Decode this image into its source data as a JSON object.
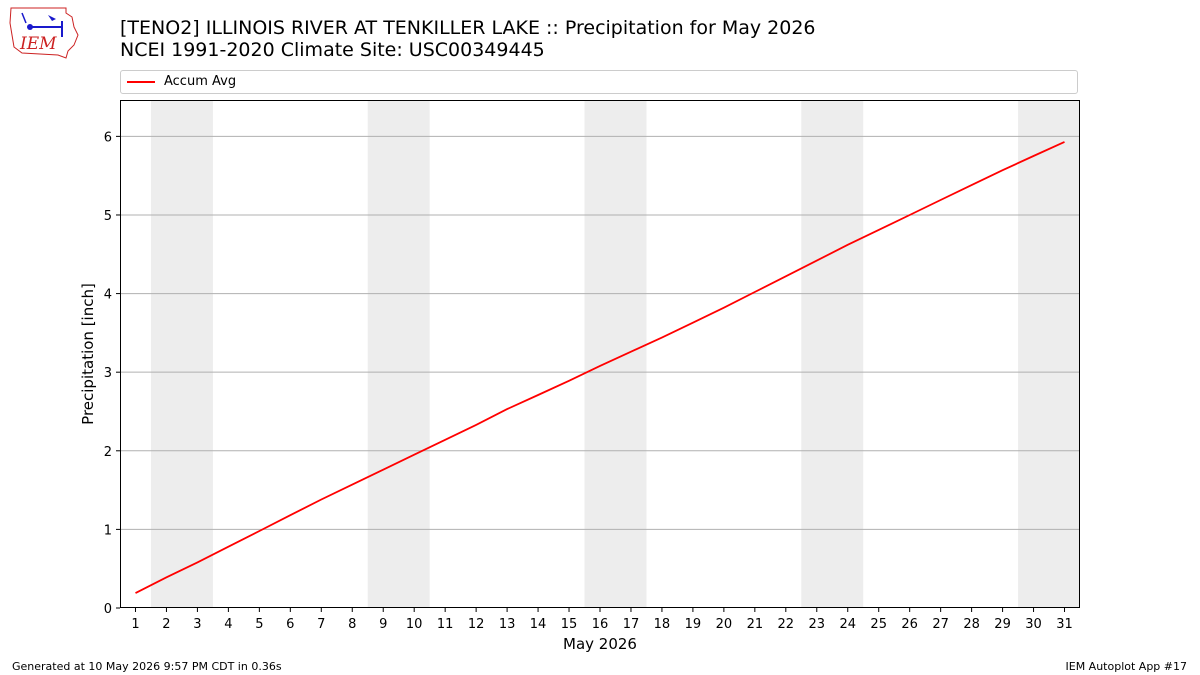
{
  "header": {
    "title_line1": "[TENO2] ILLINOIS RIVER  AT TENKILLER LAKE :: Precipitation for May 2026",
    "title_line2": "NCEI 1991-2020 Climate Site: USC00349445"
  },
  "logo": {
    "text": "IEM"
  },
  "footer": {
    "generated": "Generated at 10 May 2026 9:57 PM CDT in 0.36s",
    "app": "IEM Autoplot App #17"
  },
  "colors": {
    "line": "#ff0000",
    "weekend_band": "#ededed",
    "grid": "#b0b0b0",
    "logo": "#cc2222",
    "logo_icon": "#1a1acc"
  },
  "chart_data": {
    "type": "line",
    "xlabel": "May 2026",
    "ylabel": "Precipitation [inch]",
    "xlim": [
      0.5,
      31.5
    ],
    "ylim": [
      0,
      6.45
    ],
    "x_ticks": [
      1,
      2,
      3,
      4,
      5,
      6,
      7,
      8,
      9,
      10,
      11,
      12,
      13,
      14,
      15,
      16,
      17,
      18,
      19,
      20,
      21,
      22,
      23,
      24,
      25,
      26,
      27,
      28,
      29,
      30,
      31
    ],
    "y_ticks": [
      0,
      1,
      2,
      3,
      4,
      5,
      6
    ],
    "grid": "horizontal",
    "weekend_bands": [
      [
        1.5,
        3.5
      ],
      [
        8.5,
        10.5
      ],
      [
        15.5,
        17.5
      ],
      [
        22.5,
        24.5
      ],
      [
        29.5,
        31.5
      ]
    ],
    "legend": {
      "placement": "top",
      "entries": [
        "Accum Avg"
      ]
    },
    "series": [
      {
        "name": "Accum Avg",
        "x": [
          1,
          2,
          3,
          4,
          5,
          6,
          7,
          8,
          9,
          10,
          11,
          12,
          13,
          14,
          15,
          16,
          17,
          18,
          19,
          20,
          21,
          22,
          23,
          24,
          25,
          26,
          27,
          28,
          29,
          30,
          31
        ],
        "y": [
          0.19,
          0.39,
          0.58,
          0.78,
          0.98,
          1.18,
          1.38,
          1.57,
          1.76,
          1.95,
          2.14,
          2.33,
          2.53,
          2.71,
          2.89,
          3.08,
          3.26,
          3.44,
          3.63,
          3.82,
          4.02,
          4.22,
          4.42,
          4.62,
          4.81,
          5.0,
          5.19,
          5.38,
          5.57,
          5.75,
          5.93
        ]
      }
    ]
  }
}
